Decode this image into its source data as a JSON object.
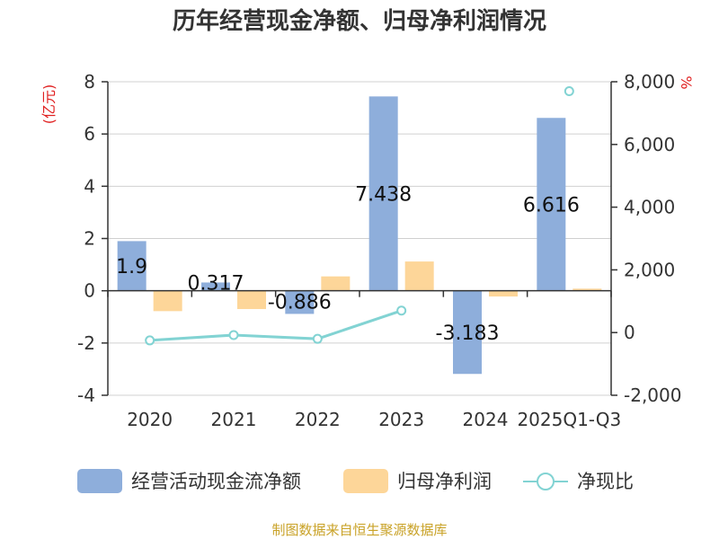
{
  "chart_data": {
    "type": "bar",
    "title": "历年经营现金净额、归母净利润情况",
    "categories": [
      "2020",
      "2021",
      "2022",
      "2023",
      "2024",
      "2025Q1-Q3"
    ],
    "left_axis": {
      "unit": "(亿元)",
      "min": -4,
      "max": 8,
      "ticks": [
        "8",
        "6",
        "4",
        "2",
        "0",
        "-2",
        "-4"
      ]
    },
    "right_axis": {
      "unit": "%",
      "min": -2000,
      "max": 8000,
      "ticks": [
        "8,000",
        "6,000",
        "4,000",
        "2,000",
        "0",
        "-2,000"
      ]
    },
    "series": [
      {
        "name": "经营活动现金流净额",
        "type": "bar",
        "axis": "left",
        "color": "#8eaedb",
        "values": [
          1.9,
          0.317,
          -0.886,
          7.438,
          -3.183,
          6.616
        ],
        "labels": [
          "1.9",
          "0.317",
          "-0.886",
          "7.438",
          "-3.183",
          "6.616"
        ]
      },
      {
        "name": "归母净利润",
        "type": "bar",
        "axis": "left",
        "color": "#fdd699",
        "values": [
          -0.78,
          -0.7,
          0.55,
          1.12,
          -0.22,
          0.08
        ]
      },
      {
        "name": "净现比",
        "type": "line",
        "axis": "right",
        "color": "#82d3d3",
        "values": [
          -250,
          -80,
          -200,
          700,
          null,
          7700
        ]
      }
    ],
    "legend_position": "bottom",
    "grid": true
  },
  "source_text": "制图数据来自恒生聚源数据库"
}
